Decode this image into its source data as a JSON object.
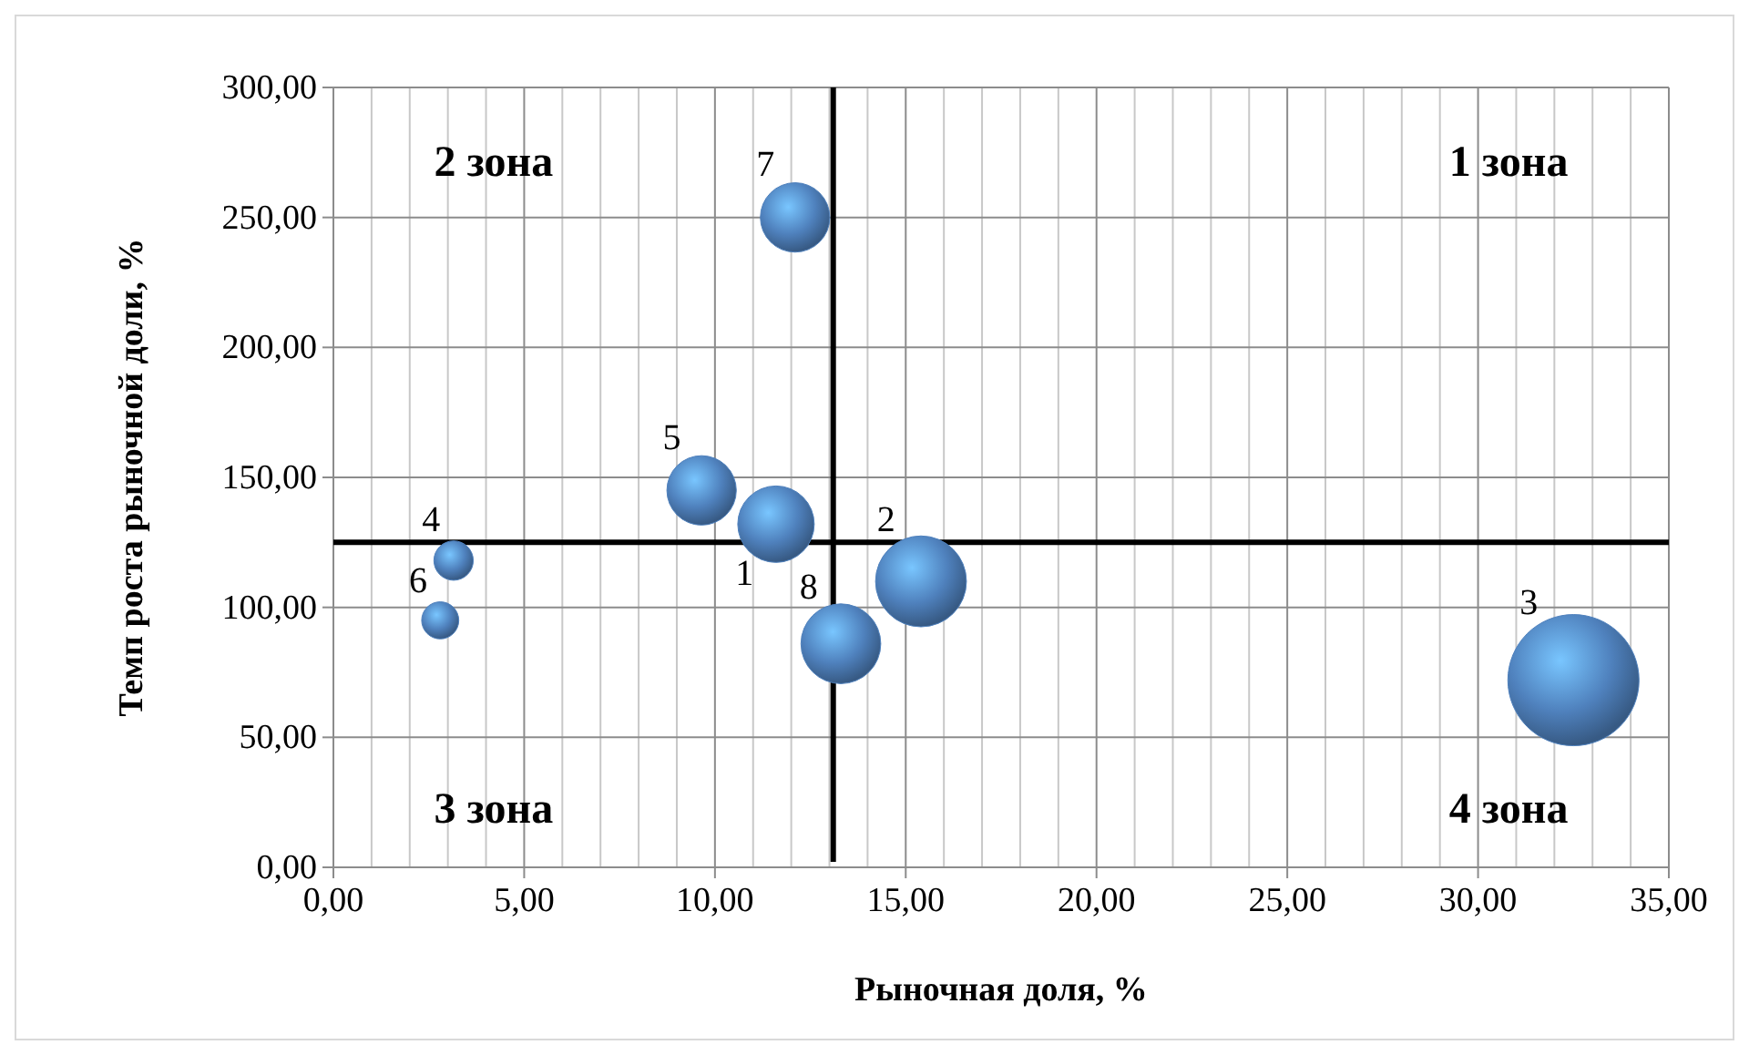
{
  "chart_data": {
    "type": "bubble",
    "xlabel": "Рыночная доля, %",
    "ylabel": "Темп роста рыночной доли, %",
    "x": [
      11.6,
      15.4,
      32.5,
      3.15,
      9.65,
      2.8,
      12.1,
      13.3
    ],
    "values": [
      132,
      110,
      72,
      118,
      145,
      95,
      250,
      86
    ],
    "sizes": [
      0.34,
      0.48,
      1,
      0.09,
      0.28,
      0.08,
      0.28,
      0.37
    ],
    "color": "#4f81bd",
    "xlim": [
      0,
      35
    ],
    "xticks": [
      {
        "value": 0,
        "label": "0,00"
      },
      {
        "value": 1,
        "label": null
      },
      {
        "value": 2,
        "label": null
      },
      {
        "value": 3,
        "label": null
      },
      {
        "value": 4,
        "label": null
      },
      {
        "value": 5,
        "label": "5,00"
      },
      {
        "value": 6,
        "label": null
      },
      {
        "value": 7,
        "label": null
      },
      {
        "value": 8,
        "label": null
      },
      {
        "value": 9,
        "label": null
      },
      {
        "value": 10,
        "label": "10,00"
      },
      {
        "value": 11,
        "label": null
      },
      {
        "value": 12,
        "label": null
      },
      {
        "value": 13,
        "label": null
      },
      {
        "value": 14,
        "label": null
      },
      {
        "value": 15,
        "label": "15,00"
      },
      {
        "value": 16,
        "label": null
      },
      {
        "value": 17,
        "label": null
      },
      {
        "value": 18,
        "label": null
      },
      {
        "value": 19,
        "label": null
      },
      {
        "value": 20,
        "label": "20,00"
      },
      {
        "value": 21,
        "label": null
      },
      {
        "value": 22,
        "label": null
      },
      {
        "value": 23,
        "label": null
      },
      {
        "value": 24,
        "label": null
      },
      {
        "value": 25,
        "label": "25,00"
      },
      {
        "value": 26,
        "label": null
      },
      {
        "value": 27,
        "label": null
      },
      {
        "value": 28,
        "label": null
      },
      {
        "value": 29,
        "label": null
      },
      {
        "value": 30,
        "label": "30,00"
      },
      {
        "value": 31,
        "label": null
      },
      {
        "value": 32,
        "label": null
      },
      {
        "value": 33,
        "label": null
      },
      {
        "value": 34,
        "label": null
      },
      {
        "value": 35,
        "label": "35,00"
      }
    ],
    "ylim": [
      0,
      300
    ],
    "yticks": [
      {
        "value": 0,
        "label": "0,00"
      },
      {
        "value": 50,
        "label": "50,00"
      },
      {
        "value": 100,
        "label": "100,00"
      },
      {
        "value": 150,
        "label": "150,00"
      },
      {
        "value": 200,
        "label": "200,00"
      },
      {
        "value": 250,
        "label": "250,00"
      },
      {
        "value": 300,
        "label": "300,00"
      }
    ],
    "grid": true,
    "ref_lines": [
      {
        "axis": "x",
        "value": 13.1,
        "color": "#000000"
      },
      {
        "axis": "y",
        "value": 125,
        "color": "#000000"
      }
    ],
    "annotations": [
      {
        "text": "1",
        "x": 11.6,
        "y": 132
      },
      {
        "text": "2",
        "x": 15.4,
        "y": 110
      },
      {
        "text": "3",
        "x": 32.5,
        "y": 72
      },
      {
        "text": "4",
        "x": 3.15,
        "y": 118
      },
      {
        "text": "5",
        "x": 9.65,
        "y": 145
      },
      {
        "text": "6",
        "x": 2.8,
        "y": 95
      },
      {
        "text": "7",
        "x": 12.1,
        "y": 250
      },
      {
        "text": "8",
        "x": 13.3,
        "y": 86
      },
      "2 зона",
      "1 зона",
      "3 зона",
      "4 зона"
    ]
  }
}
